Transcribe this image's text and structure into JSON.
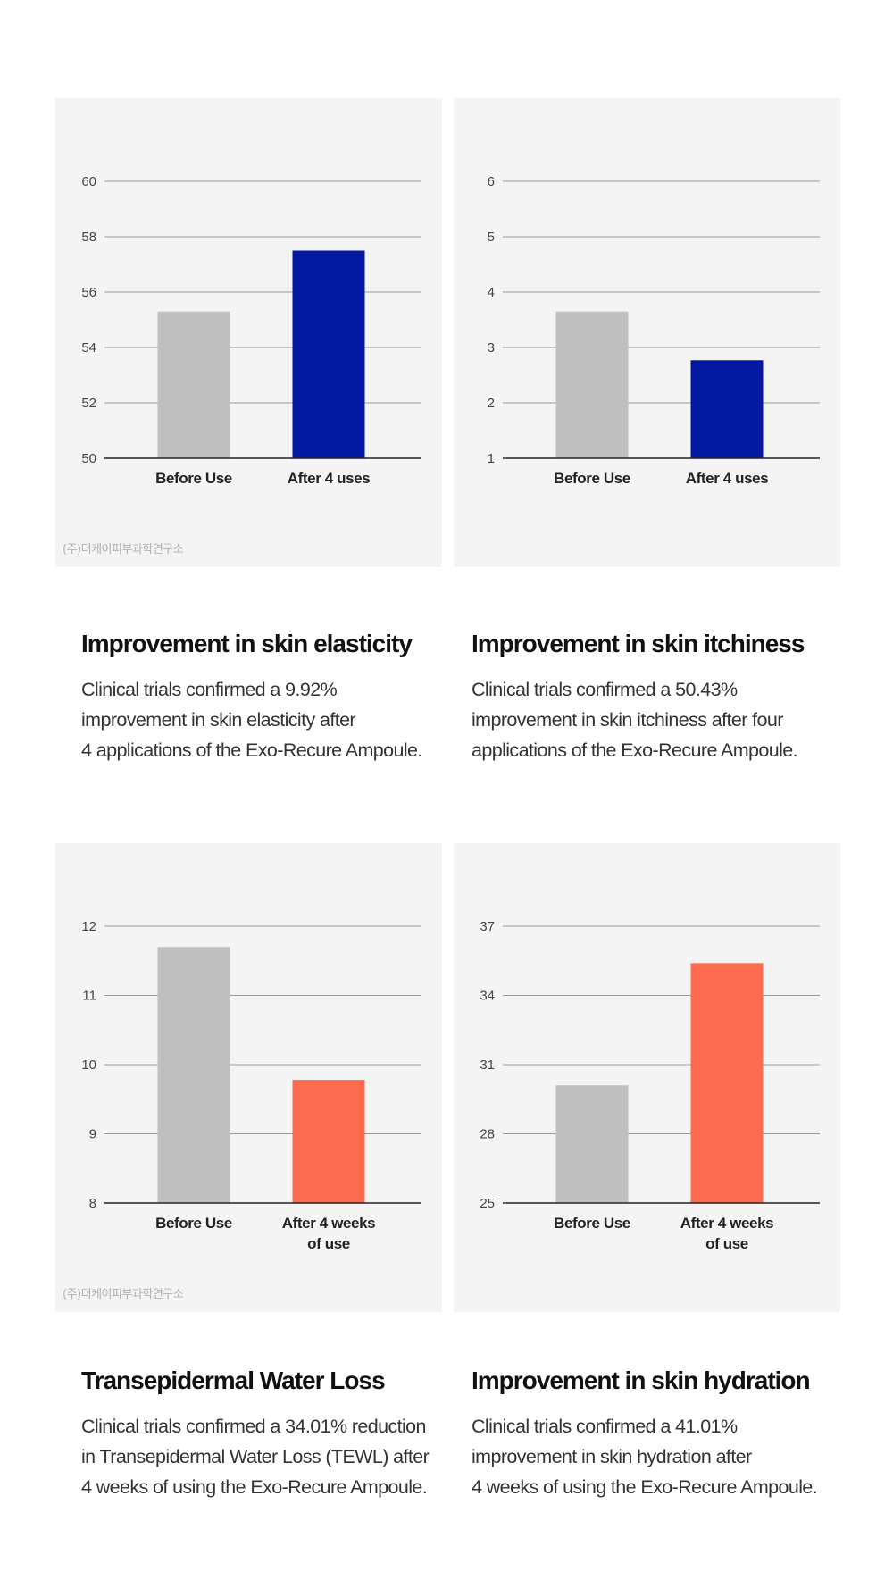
{
  "colors": {
    "panel_bg": "#f4f4f4",
    "before_bar": "#bfbfbf",
    "blue_bar": "#0218a0",
    "orange_bar": "#ff6b4f",
    "grid": "#9a9a9a",
    "axis": "#222222",
    "tick_text": "#444444"
  },
  "chart_data": [
    {
      "type": "bar",
      "title": "Improvement in skin elasticity",
      "categories": [
        "Before Use",
        "After 4 uses"
      ],
      "values": [
        55.3,
        57.5
      ],
      "ylim": [
        50,
        60
      ],
      "yticks": [
        "50",
        "52",
        "54",
        "56",
        "58",
        "60"
      ],
      "ytick_values": [
        50,
        52,
        54,
        56,
        58,
        60
      ],
      "after_color": "#0218a0",
      "credit": "(주)더케이피부과학연구소"
    },
    {
      "type": "bar",
      "title": "Improvement in skin itchiness",
      "categories": [
        "Before Use",
        "After 4 uses"
      ],
      "values": [
        3.65,
        2.77
      ],
      "ylim": [
        1,
        6
      ],
      "yticks": [
        "1",
        "2",
        "3",
        "4",
        "5",
        "6"
      ],
      "ytick_values": [
        1,
        2,
        3,
        4,
        5,
        6
      ],
      "after_color": "#0218a0",
      "credit": ""
    },
    {
      "type": "bar",
      "title": "Transepidermal Water Loss",
      "categories": [
        "Before Use",
        "After 4 weeks of use"
      ],
      "values": [
        11.7,
        9.78
      ],
      "ylim": [
        8,
        12
      ],
      "yticks": [
        "8",
        "9",
        "10",
        "11",
        "12"
      ],
      "ytick_values": [
        8,
        9,
        10,
        11,
        12
      ],
      "after_color": "#ff6b4f",
      "credit": "(주)더케이피부과학연구소"
    },
    {
      "type": "bar",
      "title": "Improvement in skin hydration",
      "categories": [
        "Before Use",
        "After 4 weeks of use"
      ],
      "values": [
        30.1,
        35.4
      ],
      "ylim": [
        25,
        37
      ],
      "yticks": [
        "25",
        "28",
        "31",
        "34",
        "37"
      ],
      "ytick_values": [
        25,
        28,
        31,
        34,
        37
      ],
      "after_color": "#ff6b4f",
      "credit": ""
    }
  ],
  "captions": [
    {
      "title": "Improvement in skin elasticity",
      "lines": [
        "Clinical trials confirmed a 9.92%",
        "improvement in skin elasticity after",
        "4 applications of the Exo-Recure Ampoule."
      ]
    },
    {
      "title": "Improvement in skin itchiness",
      "lines": [
        "Clinical trials confirmed a 50.43%",
        "improvement in skin itchiness after four",
        "applications of the Exo-Recure Ampoule."
      ]
    },
    {
      "title": "Transepidermal Water Loss",
      "lines": [
        "Clinical trials confirmed a 34.01% reduction",
        "in Transepidermal Water Loss (TEWL) after",
        "4 weeks of using the Exo-Recure Ampoule."
      ]
    },
    {
      "title": "Improvement in skin hydration",
      "lines": [
        "Clinical trials confirmed a 41.01%",
        "improvement in skin hydration after",
        "4 weeks of using the Exo-Recure Ampoule."
      ]
    }
  ]
}
